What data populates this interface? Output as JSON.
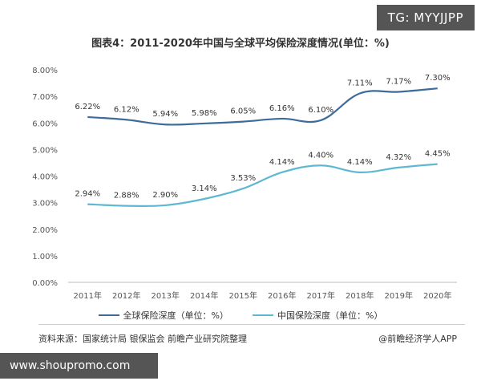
{
  "watermark_badge": "TG: MYYJJPP",
  "url_banner": "www.shoupromo.com",
  "source_text": "资料来源：国家统计局 银保监会 前瞻产业研究院整理",
  "credit_text": "@前瞻经济学人APP",
  "colors": {
    "global_line": "#3E6B9A",
    "china_line": "#5FB8D1"
  },
  "chart_data": {
    "type": "line",
    "title": "图表4：2011-2020年中国与全球平均保险深度情况(单位：%)",
    "categories": [
      "2011年",
      "2012年",
      "2013年",
      "2014年",
      "2015年",
      "2016年",
      "2017年",
      "2018年",
      "2019年",
      "2020年"
    ],
    "ylim": [
      0,
      8
    ],
    "yticks": [
      "0.00%",
      "1.00%",
      "2.00%",
      "3.00%",
      "4.00%",
      "5.00%",
      "6.00%",
      "7.00%",
      "8.00%"
    ],
    "grid": false,
    "legend_position": "bottom",
    "series": [
      {
        "name": "全球保险深度（单位：%）",
        "values": [
          6.22,
          6.12,
          5.94,
          5.98,
          6.05,
          6.16,
          6.1,
          7.11,
          7.17,
          7.3
        ],
        "labels": [
          "6.22%",
          "6.12%",
          "5.94%",
          "5.98%",
          "6.05%",
          "6.16%",
          "6.10%",
          "7.11%",
          "7.17%",
          "7.30%"
        ]
      },
      {
        "name": "中国保险深度（单位：%）",
        "values": [
          2.94,
          2.88,
          2.9,
          3.14,
          3.53,
          4.14,
          4.4,
          4.14,
          4.32,
          4.45
        ],
        "labels": [
          "2.94%",
          "2.88%",
          "2.90%",
          "3.14%",
          "3.53%",
          "4.14%",
          "4.40%",
          "4.14%",
          "4.32%",
          "4.45%"
        ]
      }
    ]
  }
}
